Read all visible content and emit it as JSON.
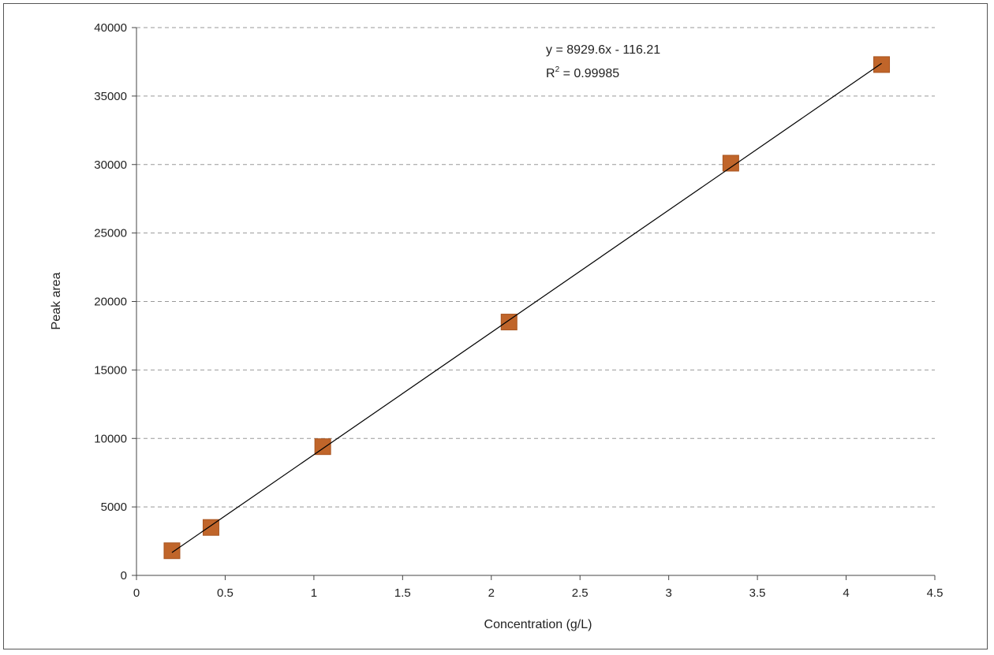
{
  "chart_data": {
    "type": "scatter",
    "title": "",
    "xlabel": "Concentration (g/L)",
    "ylabel": "Peak area",
    "xlim": [
      0,
      4.5
    ],
    "ylim": [
      0,
      40000
    ],
    "x_ticks": [
      "0",
      "0.5",
      "1",
      "1.5",
      "2",
      "2.5",
      "3",
      "3.5",
      "4",
      "4.5"
    ],
    "y_ticks": [
      "0",
      "5000",
      "10000",
      "15000",
      "20000",
      "25000",
      "30000",
      "35000",
      "40000"
    ],
    "grid": "horizontal dashed",
    "series": [
      {
        "marker": "square",
        "color": "#c0652a",
        "x": [
          0.2,
          0.42,
          1.05,
          2.1,
          3.35,
          4.2
        ],
        "y": [
          1800,
          3500,
          9400,
          18500,
          30100,
          37300
        ]
      }
    ],
    "trendline": {
      "type": "linear",
      "slope": 8929.6,
      "intercept": -116.21,
      "x_range": [
        0.2,
        4.2
      ],
      "color": "#000000",
      "equation_label": "y = 8929.6x - 116.21",
      "r2_prefix": "R",
      "r2_superscript": "2",
      "r2_value": " = 0.99985"
    },
    "colors": {
      "axis": "#444444",
      "grid": "#999999",
      "marker_edge": "#a9541f"
    }
  }
}
